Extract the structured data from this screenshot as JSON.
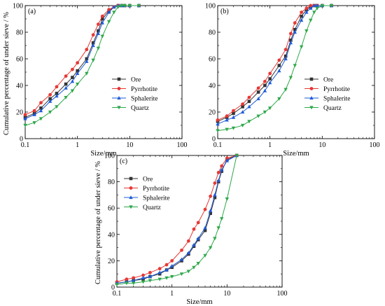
{
  "chart_data": [
    {
      "type": "line",
      "panel_label": "(a)",
      "xlabel": "Size/mm",
      "ylabel": "Cumulative percentage of under sieve / %",
      "xscale": "log",
      "xlim": [
        0.1,
        100
      ],
      "ylim": [
        0,
        100
      ],
      "xticks": [
        0.1,
        1,
        10,
        100
      ],
      "xtick_labels": [
        "0.1",
        "1",
        "10",
        "100"
      ],
      "yticks": [
        0,
        20,
        40,
        60,
        80,
        100
      ],
      "ytick_labels": [
        "0",
        "20",
        "40",
        "60",
        "80",
        "100"
      ],
      "grid": false,
      "legend_position": "lower-right",
      "series": [
        {
          "name": "Ore",
          "color": "#333333",
          "marker": "square",
          "x": [
            0.1,
            0.15,
            0.2,
            0.3,
            0.4,
            0.6,
            0.8,
            1,
            1.5,
            2,
            2.5,
            3,
            4,
            5,
            6,
            7,
            8,
            10,
            15
          ],
          "y": [
            16,
            19,
            23,
            30,
            34,
            41,
            46,
            51,
            60,
            72,
            81,
            90,
            96,
            99,
            100,
            100,
            100,
            100,
            100
          ]
        },
        {
          "name": "Pyrrhotite",
          "color": "#e53935",
          "marker": "circle",
          "x": [
            0.1,
            0.15,
            0.2,
            0.3,
            0.4,
            0.6,
            0.8,
            1,
            1.5,
            2,
            2.5,
            3,
            4,
            5,
            6,
            7,
            8,
            10,
            15
          ],
          "y": [
            18,
            21,
            27,
            33,
            39,
            47,
            52,
            57,
            67,
            78,
            86,
            92,
            97,
            99,
            100,
            100,
            100,
            100,
            100
          ]
        },
        {
          "name": "Sphalerite",
          "color": "#1e5bd8",
          "marker": "triangle-up",
          "x": [
            0.1,
            0.15,
            0.2,
            0.3,
            0.4,
            0.6,
            0.8,
            1,
            1.5,
            2,
            2.5,
            3,
            4,
            5,
            6,
            7,
            8,
            10,
            15
          ],
          "y": [
            15,
            18,
            21,
            28,
            32,
            38,
            43,
            49,
            58,
            70,
            79,
            87,
            95,
            99,
            100,
            100,
            100,
            100,
            100
          ]
        },
        {
          "name": "Quartz",
          "color": "#2ea84a",
          "marker": "triangle-down",
          "x": [
            0.1,
            0.15,
            0.2,
            0.3,
            0.4,
            0.6,
            0.8,
            1,
            1.5,
            2,
            2.5,
            3,
            4,
            5,
            6,
            7,
            8,
            10,
            15
          ],
          "y": [
            10,
            12,
            15,
            20,
            24,
            31,
            36,
            41,
            49,
            59,
            68,
            77,
            88,
            95,
            99,
            100,
            100,
            100,
            100
          ]
        }
      ]
    },
    {
      "type": "line",
      "panel_label": "(b)",
      "xlabel": "Size/mm",
      "ylabel": "",
      "xscale": "log",
      "xlim": [
        0.1,
        100
      ],
      "ylim": [
        0,
        100
      ],
      "xticks": [
        0.1,
        1,
        10,
        100
      ],
      "xtick_labels": [
        "0.1",
        "1",
        "10",
        "100"
      ],
      "yticks": [
        0,
        20,
        40,
        60,
        80,
        100
      ],
      "ytick_labels": [
        "0",
        "20",
        "40",
        "60",
        "80",
        "100"
      ],
      "grid": false,
      "legend_position": "lower-right",
      "series": [
        {
          "name": "Ore",
          "color": "#333333",
          "marker": "square",
          "x": [
            0.1,
            0.15,
            0.2,
            0.3,
            0.4,
            0.6,
            0.8,
            1,
            1.5,
            2,
            2.5,
            3,
            4,
            5,
            6,
            7,
            8,
            10,
            15
          ],
          "y": [
            13,
            16,
            19,
            24,
            28,
            35,
            40,
            45,
            55,
            62,
            74,
            82,
            92,
            97,
            99,
            100,
            100,
            100,
            100
          ]
        },
        {
          "name": "Pyrrhotite",
          "color": "#e53935",
          "marker": "circle",
          "x": [
            0.1,
            0.15,
            0.2,
            0.3,
            0.4,
            0.6,
            0.8,
            1,
            1.5,
            2,
            2.5,
            3,
            4,
            5,
            6,
            7,
            8,
            10,
            15
          ],
          "y": [
            14,
            17,
            21,
            26,
            31,
            38,
            43,
            49,
            59,
            67,
            79,
            87,
            95,
            98,
            100,
            100,
            100,
            100,
            100
          ]
        },
        {
          "name": "Sphalerite",
          "color": "#1e5bd8",
          "marker": "triangle-up",
          "x": [
            0.1,
            0.15,
            0.2,
            0.3,
            0.4,
            0.6,
            0.8,
            1,
            1.5,
            2,
            2.5,
            3,
            4,
            5,
            6,
            7,
            8,
            10,
            15
          ],
          "y": [
            11,
            14,
            16,
            20,
            24,
            30,
            36,
            42,
            51,
            60,
            72,
            80,
            89,
            95,
            98,
            100,
            100,
            100,
            100
          ]
        },
        {
          "name": "Quartz",
          "color": "#2ea84a",
          "marker": "triangle-down",
          "x": [
            0.1,
            0.15,
            0.2,
            0.3,
            0.4,
            0.6,
            0.8,
            1,
            1.5,
            2,
            2.5,
            3,
            4,
            5,
            6,
            7,
            8,
            10,
            15
          ],
          "y": [
            6,
            7,
            8,
            10,
            13,
            17,
            20,
            23,
            30,
            37,
            46,
            55,
            69,
            81,
            89,
            95,
            98,
            100,
            100
          ]
        }
      ]
    },
    {
      "type": "line",
      "panel_label": "(c)",
      "xlabel": "Size/mm",
      "ylabel": "Cumulative percentage of under sieve / %",
      "xscale": "log",
      "xlim": [
        0.1,
        100
      ],
      "ylim": [
        0,
        100
      ],
      "xticks": [
        0.1,
        1,
        10,
        100
      ],
      "xtick_labels": [
        "0.1",
        "1",
        "10",
        "100"
      ],
      "yticks": [
        0,
        20,
        40,
        60,
        80,
        100
      ],
      "ytick_labels": [
        "0",
        "20",
        "40",
        "60",
        "80",
        "100"
      ],
      "grid": false,
      "legend_position": "upper-left",
      "series": [
        {
          "name": "Ore",
          "color": "#333333",
          "marker": "square",
          "x": [
            0.1,
            0.15,
            0.2,
            0.3,
            0.4,
            0.6,
            0.8,
            1,
            1.5,
            2,
            2.5,
            3,
            4,
            5,
            6,
            7,
            8,
            10,
            15
          ],
          "y": [
            3,
            4,
            5,
            6,
            8,
            10,
            13,
            15,
            20,
            25,
            31,
            36,
            43,
            56,
            68,
            80,
            88,
            97,
            100
          ]
        },
        {
          "name": "Pyrrhotite",
          "color": "#e53935",
          "marker": "circle",
          "x": [
            0.1,
            0.15,
            0.2,
            0.3,
            0.4,
            0.6,
            0.8,
            1,
            1.5,
            2,
            2.5,
            3,
            4,
            5,
            6,
            7,
            8,
            10,
            15
          ],
          "y": [
            4,
            6,
            7,
            9,
            11,
            14,
            17,
            20,
            28,
            35,
            44,
            49,
            59,
            69,
            79,
            87,
            92,
            98,
            100
          ]
        },
        {
          "name": "Sphalerite",
          "color": "#1e5bd8",
          "marker": "triangle-up",
          "x": [
            0.1,
            0.15,
            0.2,
            0.3,
            0.4,
            0.6,
            0.8,
            1,
            1.5,
            2,
            2.5,
            3,
            4,
            5,
            6,
            7,
            8,
            10,
            15
          ],
          "y": [
            3,
            4,
            5,
            7,
            8,
            11,
            13,
            16,
            21,
            26,
            32,
            37,
            45,
            58,
            70,
            81,
            89,
            96,
            100
          ]
        },
        {
          "name": "Quartz",
          "color": "#2ea84a",
          "marker": "triangle-down",
          "x": [
            0.1,
            0.15,
            0.2,
            0.3,
            0.4,
            0.6,
            0.8,
            1,
            1.5,
            2,
            2.5,
            3,
            4,
            5,
            6,
            7,
            8,
            10,
            15
          ],
          "y": [
            2,
            3,
            3,
            4,
            5,
            6,
            7,
            8,
            10,
            12,
            15,
            18,
            24,
            30,
            37,
            45,
            52,
            67,
            100
          ]
        }
      ]
    }
  ]
}
